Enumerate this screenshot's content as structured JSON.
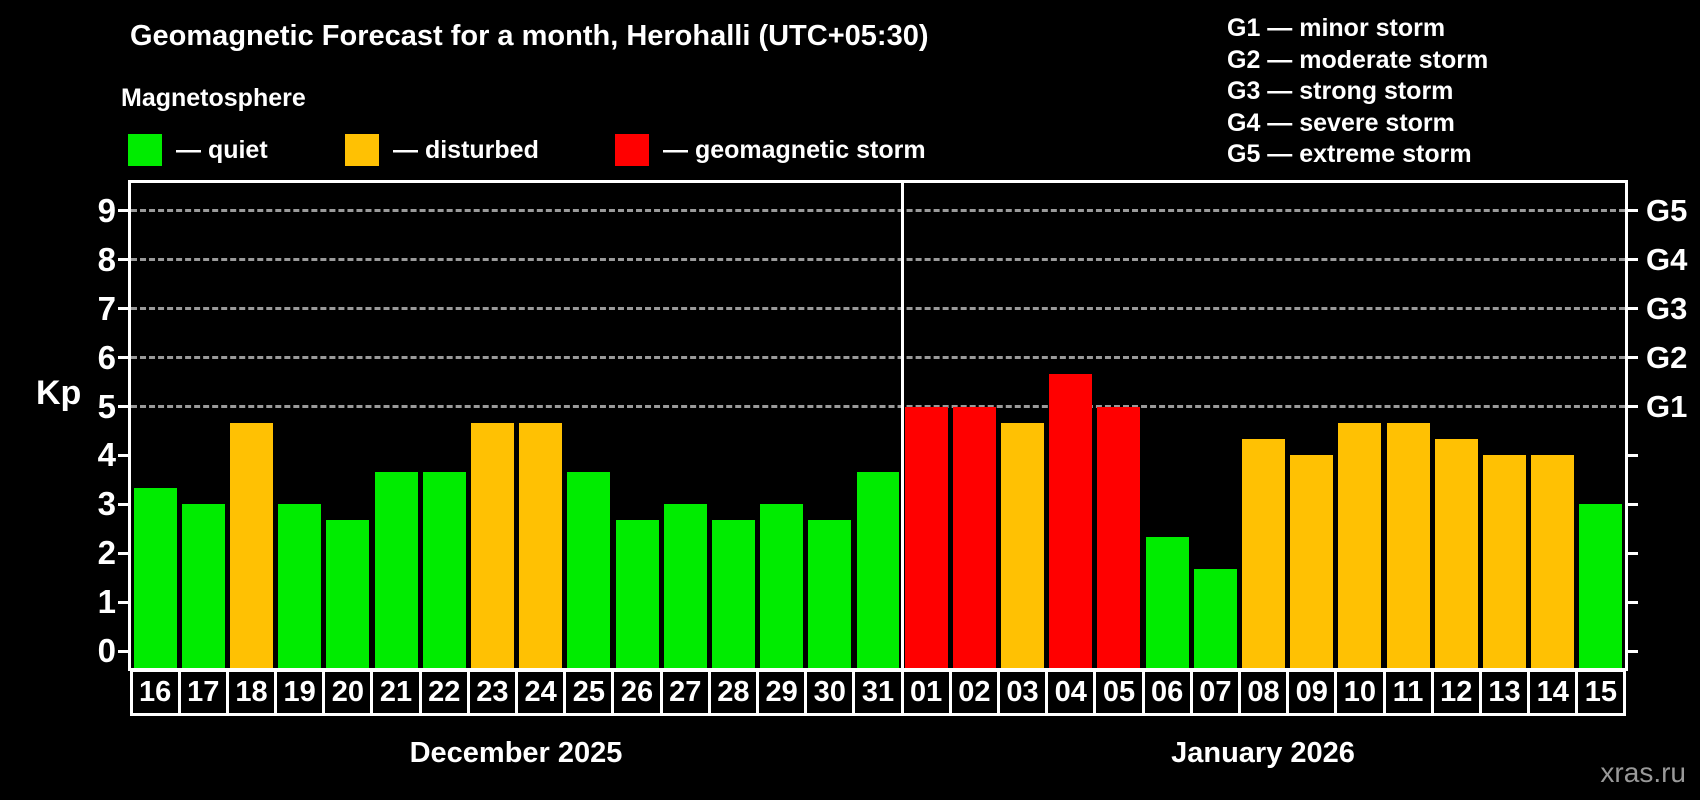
{
  "title": "Geomagnetic Forecast for a month, Herohalli (UTC+05:30)",
  "subtitle": "Magnetosphere",
  "legend": {
    "items": [
      {
        "level": "quiet",
        "label": "— quiet"
      },
      {
        "level": "disturbed",
        "label": "— disturbed"
      },
      {
        "level": "storm",
        "label": "— geomagnetic storm"
      }
    ]
  },
  "g_legend": [
    "G1 — minor storm",
    "G2 — moderate storm",
    "G3 — strong storm",
    "G4 — severe storm",
    "G5 — extreme storm"
  ],
  "colors": {
    "quiet": "#00ec00",
    "disturbed": "#ffc103",
    "storm": "#ff0000",
    "grid": "#9a9a9a",
    "background": "#000000",
    "text": "#ffffff",
    "watermark": "#999999"
  },
  "watermark": "xras.ru",
  "chart_data": {
    "type": "bar",
    "ylabel": "Kp",
    "ylim": [
      0,
      9
    ],
    "yticks": [
      0,
      1,
      2,
      3,
      4,
      5,
      6,
      7,
      8,
      9
    ],
    "gridlines_at": [
      5,
      6,
      7,
      8,
      9
    ],
    "grid": "dashed, horizontal, G-storm levels only",
    "right_axis_labels": [
      {
        "kp": 5,
        "label": "G1"
      },
      {
        "kp": 6,
        "label": "G2"
      },
      {
        "kp": 7,
        "label": "G3"
      },
      {
        "kp": 8,
        "label": "G4"
      },
      {
        "kp": 9,
        "label": "G5"
      }
    ],
    "months": [
      {
        "label": "December 2025",
        "count": 16
      },
      {
        "label": "January 2026",
        "count": 15
      }
    ],
    "bars": [
      {
        "day": "16",
        "kp": 3.33,
        "level": "quiet"
      },
      {
        "day": "17",
        "kp": 3.0,
        "level": "quiet"
      },
      {
        "day": "18",
        "kp": 4.67,
        "level": "disturbed"
      },
      {
        "day": "19",
        "kp": 3.0,
        "level": "quiet"
      },
      {
        "day": "20",
        "kp": 2.67,
        "level": "quiet"
      },
      {
        "day": "21",
        "kp": 3.67,
        "level": "quiet"
      },
      {
        "day": "22",
        "kp": 3.67,
        "level": "quiet"
      },
      {
        "day": "23",
        "kp": 4.67,
        "level": "disturbed"
      },
      {
        "day": "24",
        "kp": 4.67,
        "level": "disturbed"
      },
      {
        "day": "25",
        "kp": 3.67,
        "level": "quiet"
      },
      {
        "day": "26",
        "kp": 2.67,
        "level": "quiet"
      },
      {
        "day": "27",
        "kp": 3.0,
        "level": "quiet"
      },
      {
        "day": "28",
        "kp": 2.67,
        "level": "quiet"
      },
      {
        "day": "29",
        "kp": 3.0,
        "level": "quiet"
      },
      {
        "day": "30",
        "kp": 2.67,
        "level": "quiet"
      },
      {
        "day": "31",
        "kp": 3.67,
        "level": "quiet"
      },
      {
        "day": "01",
        "kp": 5.0,
        "level": "storm"
      },
      {
        "day": "02",
        "kp": 5.0,
        "level": "storm"
      },
      {
        "day": "03",
        "kp": 4.67,
        "level": "disturbed"
      },
      {
        "day": "04",
        "kp": 5.67,
        "level": "storm"
      },
      {
        "day": "05",
        "kp": 5.0,
        "level": "storm"
      },
      {
        "day": "06",
        "kp": 2.33,
        "level": "quiet"
      },
      {
        "day": "07",
        "kp": 1.67,
        "level": "quiet"
      },
      {
        "day": "08",
        "kp": 4.33,
        "level": "disturbed"
      },
      {
        "day": "09",
        "kp": 4.0,
        "level": "disturbed"
      },
      {
        "day": "10",
        "kp": 4.67,
        "level": "disturbed"
      },
      {
        "day": "11",
        "kp": 4.67,
        "level": "disturbed"
      },
      {
        "day": "12",
        "kp": 4.33,
        "level": "disturbed"
      },
      {
        "day": "13",
        "kp": 4.0,
        "level": "disturbed"
      },
      {
        "day": "14",
        "kp": 4.0,
        "level": "disturbed"
      },
      {
        "day": "15",
        "kp": 3.0,
        "level": "quiet"
      }
    ]
  }
}
